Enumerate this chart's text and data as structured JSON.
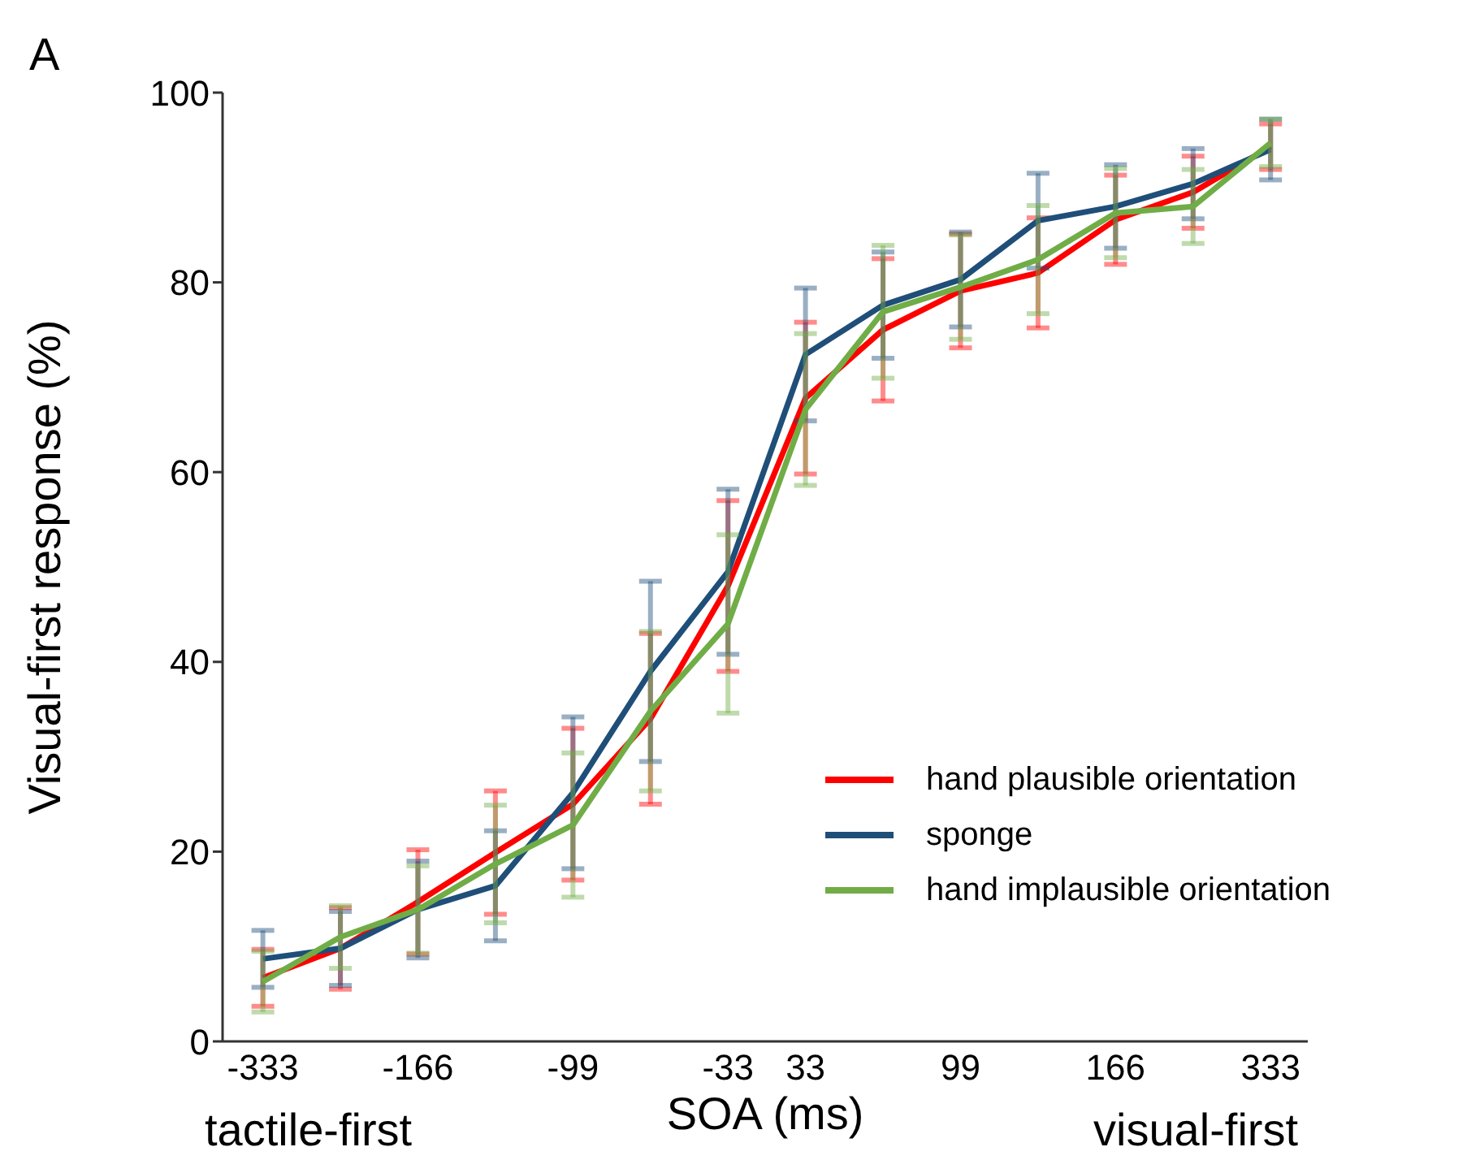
{
  "chart_data": {
    "type": "line",
    "xlabel": "SOA (ms)",
    "ylabel": "Visual-first response (%)",
    "annotations": [
      "A",
      "tactile-first",
      "visual-first"
    ],
    "categories": [
      "-333",
      null,
      "-166",
      null,
      "-99",
      null,
      "-33",
      "33",
      null,
      "99",
      null,
      "166",
      null,
      "333"
    ],
    "series": [
      {
        "name": "hand plausible orientation",
        "color": "#ff0000",
        "values": [
          6.7,
          9.8,
          14.7,
          19.9,
          25,
          34,
          48,
          67.8,
          75,
          79.1,
          81,
          86.6,
          89.5,
          94.3
        ],
        "errors": [
          3,
          4.3,
          5.5,
          6.5,
          8,
          9,
          9,
          8,
          7.5,
          6,
          5.8,
          4.7,
          3.8,
          2.4
        ]
      },
      {
        "name": "sponge",
        "color": "#1f4e79",
        "values": [
          8.7,
          9.8,
          13.9,
          16.4,
          26.2,
          39,
          49.5,
          72.4,
          77.6,
          80.3,
          86.5,
          88,
          90.4,
          94
        ],
        "errors": [
          3,
          3.9,
          5.1,
          5.8,
          8,
          9.5,
          8.7,
          7,
          5.6,
          5,
          5,
          4.4,
          3.7,
          3.2
        ]
      },
      {
        "name": "hand implausible orientation",
        "color": "#70ad47",
        "values": [
          6.3,
          11,
          13.9,
          18.7,
          22.8,
          34.8,
          44,
          66.6,
          76.9,
          79.5,
          82.4,
          87.3,
          88,
          94.7
        ],
        "errors": [
          3.2,
          3.3,
          4.6,
          6.2,
          7.6,
          8.4,
          9.4,
          8,
          7,
          5.5,
          5.7,
          4.7,
          3.9,
          2.5
        ]
      }
    ],
    "ylim": [
      0,
      100
    ],
    "yticks": [
      0,
      20,
      40,
      60,
      80,
      100
    ],
    "legend": "right",
    "marker": "none",
    "line_style": "solid",
    "grid": false
  }
}
